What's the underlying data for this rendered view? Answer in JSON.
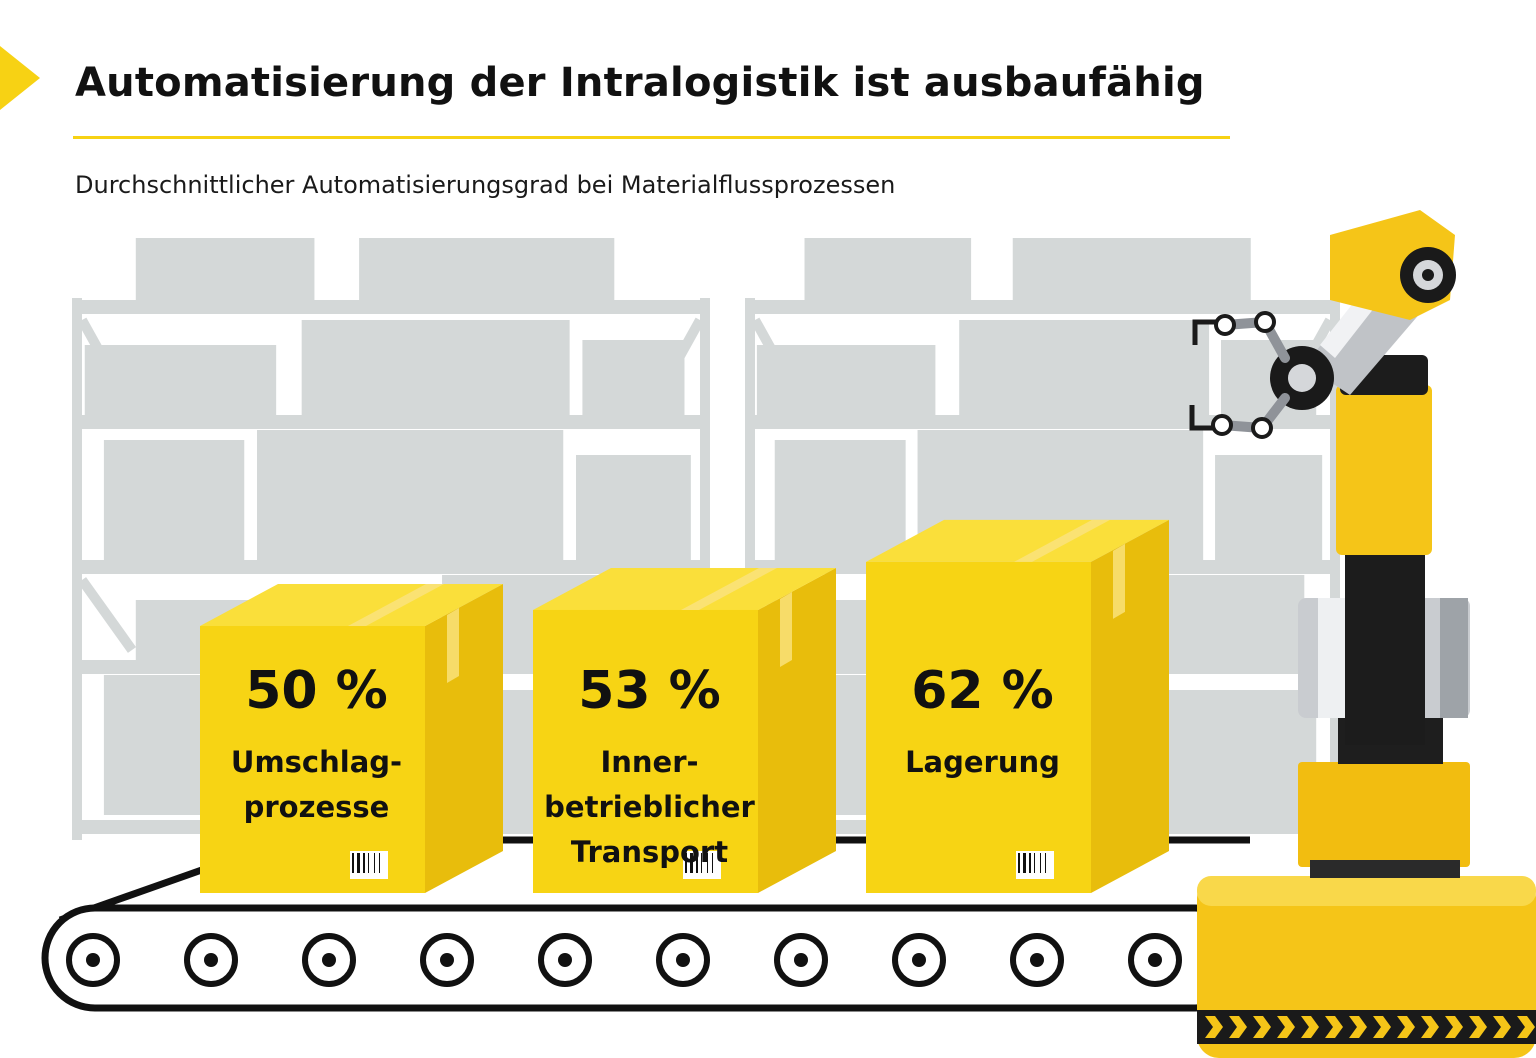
{
  "header": {
    "title": "Automatisierung der Intralogistik ist ausbaufähig",
    "subtitle": "Durchschnittlicher Automatisierungsgrad bei Materialflussprozessen"
  },
  "colors": {
    "accent": "#f7d214",
    "box_front": "#f7d414",
    "box_side": "#e8bd0c",
    "box_top": "#fadf3a",
    "shelf_gray": "#d4d8d8",
    "text": "#111111"
  },
  "icons": [
    "robot-arm-icon",
    "conveyor-belt-icon",
    "barcode-icon",
    "shelf-silhouette-icon"
  ],
  "chart_data": {
    "type": "bar",
    "title": "Automatisierung der Intralogistik ist ausbaufähig",
    "subtitle": "Durchschnittlicher Automatisierungsgrad bei Materialflussprozessen",
    "categories": [
      "Umschlag-\nprozesse",
      "Inner-\nbetrieblicher\nTransport",
      "Lagerung"
    ],
    "values": [
      50,
      53,
      62
    ],
    "value_labels": [
      "50 %",
      "53 %",
      "62 %"
    ],
    "unit": "%"
  }
}
